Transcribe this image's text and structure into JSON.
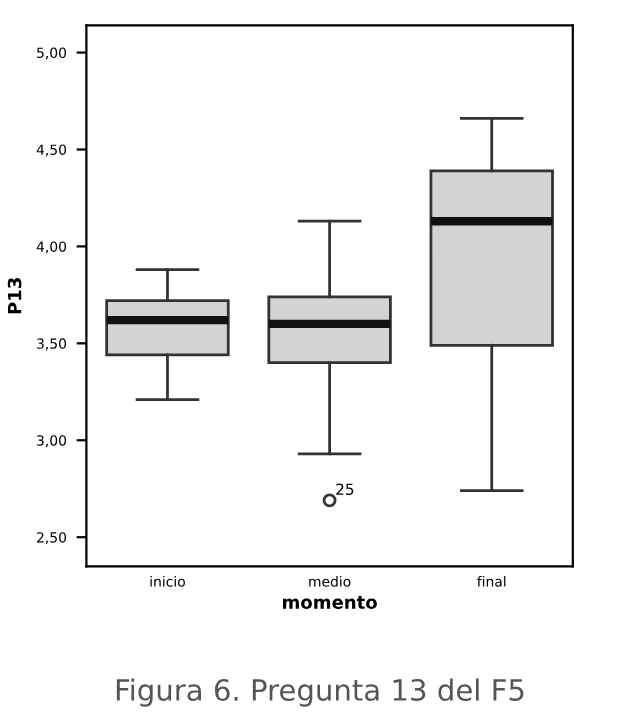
{
  "chart_data": {
    "type": "box",
    "categories": [
      "inicio",
      "medio",
      "final"
    ],
    "xlabel": "momento",
    "ylabel": "P13",
    "color": "#d3d3d3",
    "boxes": [
      {
        "low": 3.21,
        "q1": 3.44,
        "median": 3.62,
        "q3": 3.72,
        "high": 3.88
      },
      {
        "low": 2.93,
        "q1": 3.4,
        "median": 3.6,
        "q3": 3.74,
        "high": 4.13,
        "outliers": [
          2.69
        ]
      },
      {
        "low": 2.74,
        "q1": 3.49,
        "median": 4.13,
        "q3": 4.39,
        "high": 4.66
      }
    ],
    "ylim": [
      2.35,
      5.14
    ],
    "yticks": [
      {
        "value": 2.5,
        "label": "2,50"
      },
      {
        "value": 3.0,
        "label": "3,00"
      },
      {
        "value": 3.5,
        "label": "3,50"
      },
      {
        "value": 4.0,
        "label": "4,00"
      },
      {
        "value": 4.5,
        "label": "4,50"
      },
      {
        "value": 5.0,
        "label": "5,00"
      }
    ],
    "grid": false,
    "annotations": [
      "25",
      "Figura 6. Pregunta 13 del F5"
    ]
  }
}
